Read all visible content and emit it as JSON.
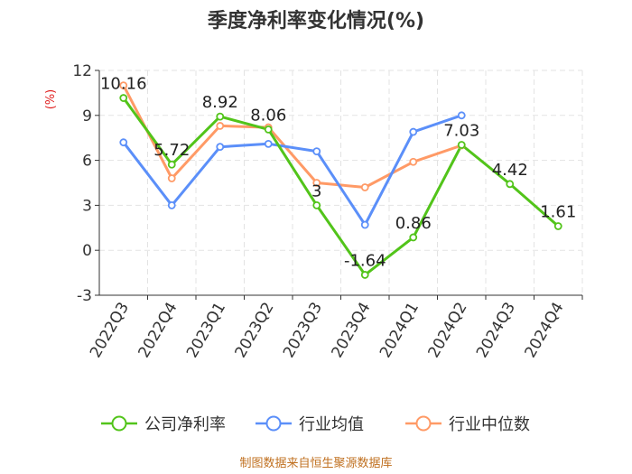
{
  "chart_data": {
    "type": "line",
    "title": "季度净利率变化情况(%)",
    "ylabel": "(%)",
    "xlabel": "",
    "ylim": [
      -3,
      12
    ],
    "yticks": [
      -3,
      0,
      3,
      6,
      9,
      12
    ],
    "grid": true,
    "legend_position": "bottom",
    "categories": [
      "2022Q3",
      "2022Q4",
      "2023Q1",
      "2023Q2",
      "2023Q3",
      "2023Q4",
      "2024Q1",
      "2024Q2",
      "2024Q3",
      "2024Q4"
    ],
    "series": [
      {
        "name": "公司净利率",
        "color": "#52c41a",
        "values": [
          10.16,
          5.72,
          8.92,
          8.06,
          3,
          -1.64,
          0.86,
          7.03,
          4.42,
          1.61
        ],
        "labels": [
          "10.16",
          "5.72",
          "8.92",
          "8.06",
          "3",
          "-1.64",
          "0.86",
          "7.03",
          "4.42",
          "1.61"
        ]
      },
      {
        "name": "行业均值",
        "color": "#5b8ff9",
        "values": [
          7.2,
          3.0,
          6.9,
          7.1,
          6.6,
          1.7,
          7.9,
          9.0,
          null,
          null
        ]
      },
      {
        "name": "行业中位数",
        "color": "#ff9a66",
        "values": [
          11.0,
          4.8,
          8.3,
          8.2,
          4.5,
          4.2,
          5.9,
          7.0,
          null,
          null
        ]
      }
    ],
    "source": "制图数据来自恒生聚源数据库"
  }
}
